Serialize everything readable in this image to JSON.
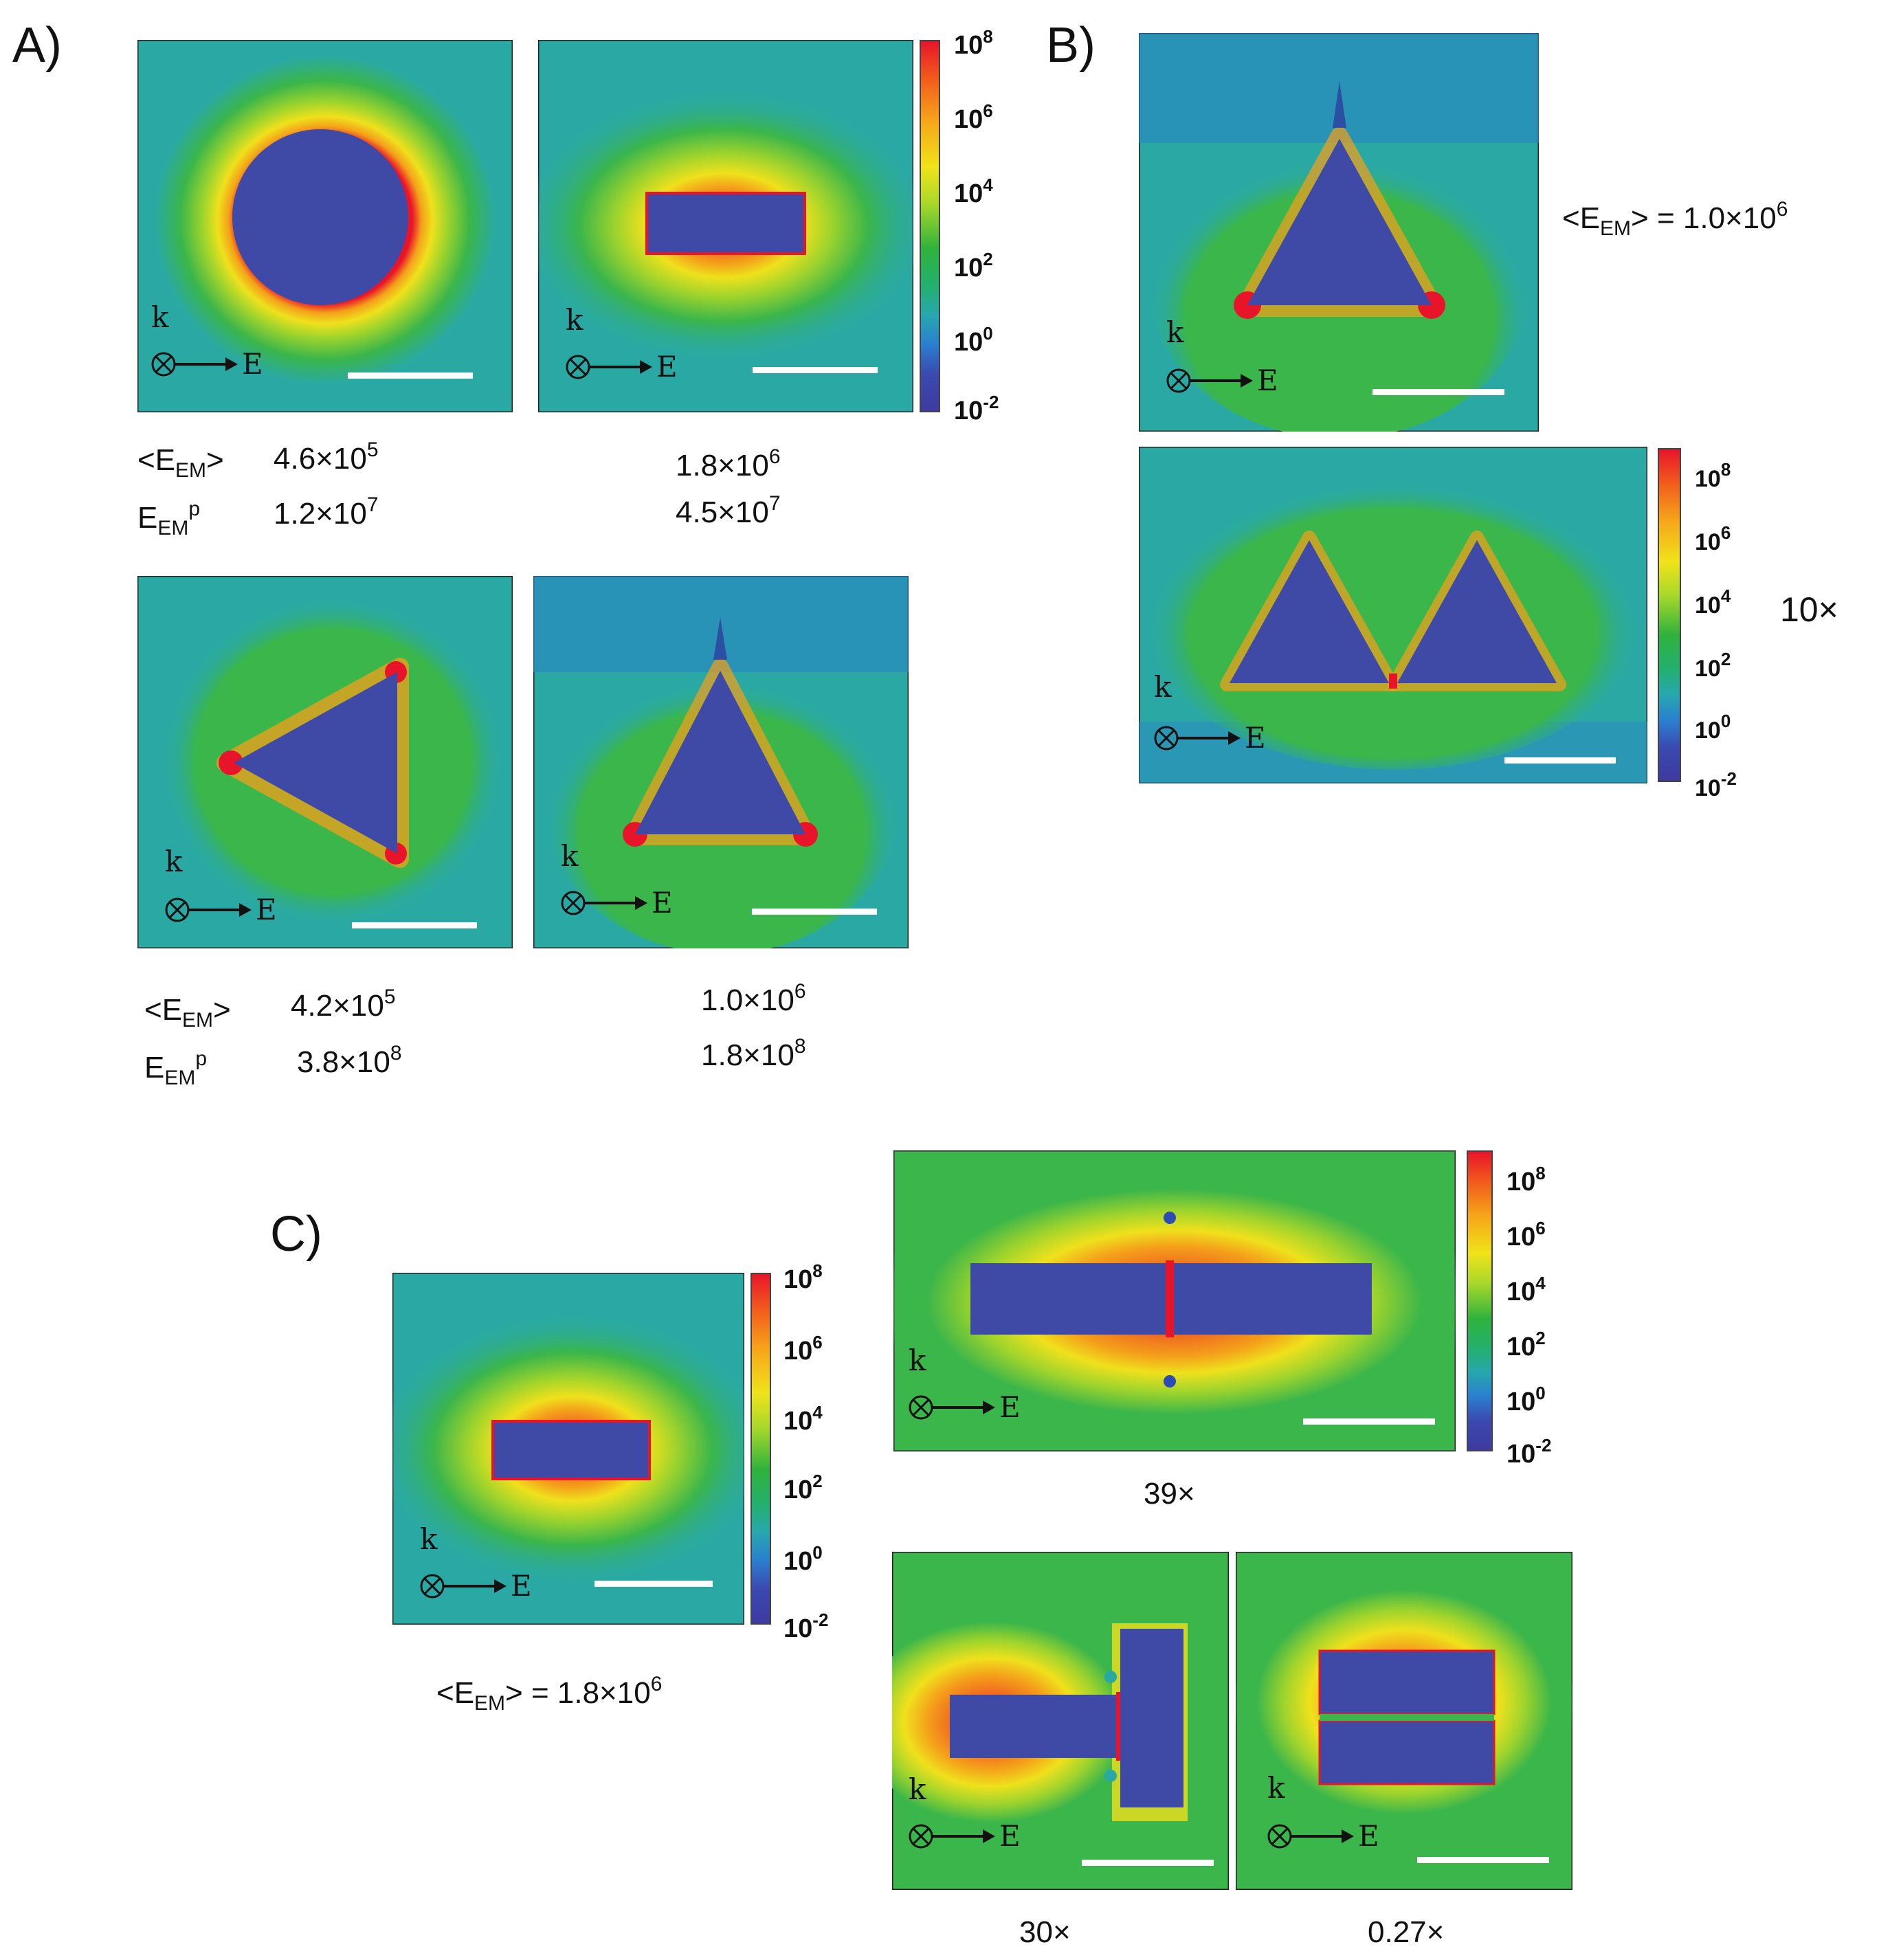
{
  "panels": {
    "A": {
      "letter": "A)",
      "top_row": [
        {
          "shape": "disk",
          "eem_avg": "4.6×10^5",
          "eem_peak": "1.2×10^7"
        },
        {
          "shape": "rod",
          "eem_avg": "1.8×10^6",
          "eem_peak": "4.5×10^7"
        }
      ],
      "bottom_row": [
        {
          "shape": "triangle-left",
          "eem_avg": "4.2×10^5",
          "eem_peak": "3.8×10^8"
        },
        {
          "shape": "triangle-up",
          "eem_avg": "1.0×10^6",
          "eem_peak": "1.8×10^8"
        }
      ],
      "row_label_avg": "<EEM>",
      "row_label_peak": "EEMp"
    },
    "B": {
      "letter": "B)",
      "single_eem": "<EEM> = 1.0×10^6",
      "dimer_factor": "10×"
    },
    "C": {
      "letter": "C)",
      "single_eem": "<EEM> = 1.8×10^6",
      "end_to_end_factor": "39×",
      "t_shape_factor": "30×",
      "side_by_side_factor": "0.27×"
    }
  },
  "field_labels": {
    "k": "k",
    "E": "E"
  },
  "colorbar_ticks": [
    "10^8",
    "10^6",
    "10^4",
    "10^2",
    "10^0",
    "10^-2"
  ],
  "colors": {
    "particle": "#3f4aa6",
    "background_field": "#2aa7a0",
    "near_field": "#33b54a",
    "hot": "#f0c21a",
    "hottest": "#e8142a",
    "scale_bar": "#ffffff"
  }
}
